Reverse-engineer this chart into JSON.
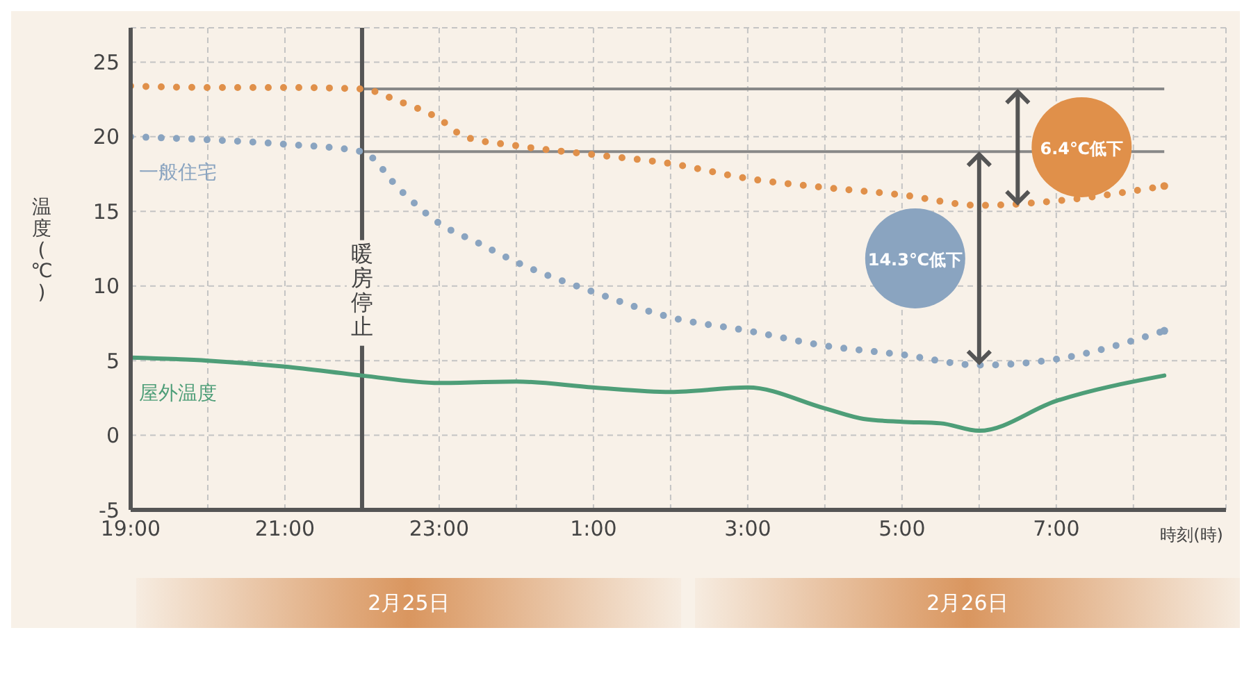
{
  "chart_data": {
    "type": "line",
    "xlabel": "時刻(時)",
    "ylabel": "温度(℃)",
    "xlim": [
      "--02-25T19:00",
      "--02-26T09:12"
    ],
    "ylim": [
      -5,
      27.3
    ],
    "xticks": [
      {
        "value": "--02-25T19:00",
        "label": "19:00"
      },
      {
        "value": "--02-25T20:00",
        "label": null
      },
      {
        "value": "--02-25T21:00",
        "label": "21:00"
      },
      {
        "value": "--02-25T22:00",
        "label": null
      },
      {
        "value": "--02-25T23:00",
        "label": "23:00"
      },
      {
        "value": "--02-26T00:00",
        "label": null
      },
      {
        "value": "--02-26T01:00",
        "label": "1:00"
      },
      {
        "value": "--02-26T02:00",
        "label": null
      },
      {
        "value": "--02-26T03:00",
        "label": "3:00"
      },
      {
        "value": "--02-26T04:00",
        "label": null
      },
      {
        "value": "--02-26T05:00",
        "label": "5:00"
      },
      {
        "value": "--02-26T06:00",
        "label": null
      },
      {
        "value": "--02-26T07:00",
        "label": "7:00"
      },
      {
        "value": "--02-26T08:00",
        "label": null
      }
    ],
    "yticks": [
      -5,
      0,
      5,
      10,
      15,
      20,
      25
    ],
    "grid": true,
    "legend": false,
    "series": [
      {
        "color": "#e0904a",
        "line_style": "dotted",
        "x": [
          "--02-25T19:00",
          "--02-25T20:00",
          "--02-25T21:00",
          "--02-25T22:00",
          "--02-25T22:28",
          "--02-25T23:00",
          "--02-25T23:20",
          "--02-26T00:00",
          "--02-26T01:00",
          "--02-26T02:00",
          "--02-26T03:00",
          "--02-26T04:00",
          "--02-26T05:00",
          "--02-26T06:00",
          "--02-26T07:00",
          "--02-26T08:24"
        ],
        "values": [
          23.4,
          23.3,
          23.3,
          23.2,
          22.4,
          21.2,
          20.0,
          19.4,
          18.8,
          18.2,
          17.2,
          16.6,
          16.1,
          15.4,
          15.7,
          16.7
        ]
      },
      {
        "name": "一般住宅",
        "color": "#8aa4c0",
        "line_style": "dotted",
        "x": [
          "--02-25T19:00",
          "--02-25T20:00",
          "--02-25T21:00",
          "--02-25T22:00",
          "--02-25T22:30",
          "--02-25T23:00",
          "--02-25T23:30",
          "--02-26T00:00",
          "--02-26T01:00",
          "--02-26T02:00",
          "--02-26T03:00",
          "--02-26T04:00",
          "--02-26T05:00",
          "--02-26T06:00",
          "--02-26T07:00",
          "--02-26T08:24"
        ],
        "values": [
          20.0,
          19.8,
          19.5,
          19.0,
          16.4,
          14.2,
          12.9,
          11.6,
          9.6,
          7.9,
          7.0,
          6.0,
          5.4,
          4.7,
          5.1,
          7.0
        ]
      },
      {
        "name": "屋外温度",
        "color": "#4e9e78",
        "line_style": "solid",
        "x": [
          "--02-25T19:00",
          "--02-25T20:00",
          "--02-25T21:00",
          "--02-25T22:00",
          "--02-25T23:00",
          "--02-26T00:00",
          "--02-26T01:00",
          "--02-26T02:00",
          "--02-26T03:00",
          "--02-26T04:00",
          "--02-26T04:30",
          "--02-26T05:00",
          "--02-26T05:30",
          "--02-26T06:00",
          "--02-26T07:00",
          "--02-26T08:24"
        ],
        "values": [
          5.2,
          5.0,
          4.6,
          4.0,
          3.5,
          3.6,
          3.2,
          2.9,
          3.2,
          1.8,
          1.1,
          0.9,
          0.8,
          0.3,
          2.3,
          4.0
        ]
      }
    ],
    "ref_lines": [
      {
        "axis": "x",
        "value": "--02-25T22:00",
        "label": "暖房停止",
        "color": "#555555"
      },
      {
        "axis": "y",
        "value": 23.2,
        "label": null,
        "color": "#888888"
      },
      {
        "axis": "y",
        "value": 19.0,
        "label": null,
        "color": "#888888"
      }
    ],
    "annotations": [
      "6.4℃低下",
      "14.3℃低下",
      "2月25日",
      "2月26日"
    ]
  }
}
